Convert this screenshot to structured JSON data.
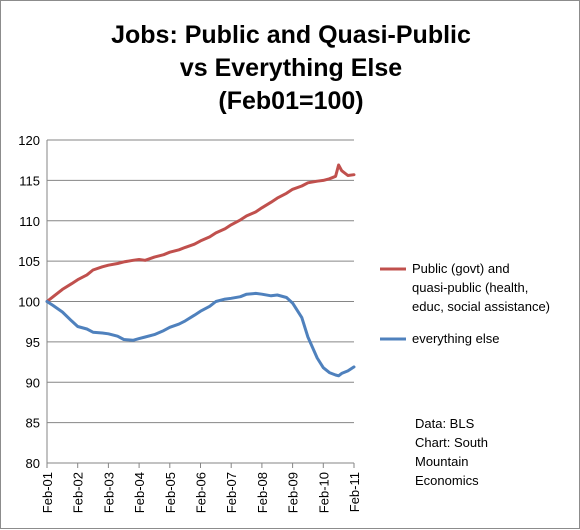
{
  "chart_data": {
    "type": "line",
    "title_lines": [
      "Jobs: Public and Quasi-Public",
      "vs Everything Else",
      "(Feb01=100)"
    ],
    "xlabel": "",
    "ylabel": "",
    "ylim": [
      80,
      120
    ],
    "y_ticks": [
      "80",
      "85",
      "90",
      "95",
      "100",
      "105",
      "110",
      "115",
      "120"
    ],
    "x_ticks": [
      "Feb-01",
      "Feb-02",
      "Feb-03",
      "Feb-04",
      "Feb-05",
      "Feb-06",
      "Feb-07",
      "Feb-08",
      "Feb-09",
      "Feb-10",
      "Feb-11"
    ],
    "grid": "horizontal",
    "legend_position": "right",
    "series": [
      {
        "name_lines": [
          "Public (govt) and",
          "quasi-public (health,",
          "educ, social assistance)"
        ],
        "color": "#C0504D",
        "x": [
          0,
          0.2,
          0.5,
          0.8,
          1.0,
          1.3,
          1.5,
          1.8,
          2.0,
          2.3,
          2.5,
          2.8,
          3.0,
          3.2,
          3.5,
          3.8,
          4.0,
          4.3,
          4.5,
          4.8,
          5.0,
          5.3,
          5.5,
          5.8,
          6.0,
          6.3,
          6.5,
          6.8,
          7.0,
          7.3,
          7.5,
          7.8,
          8.0,
          8.3,
          8.5,
          8.8,
          9.0,
          9.2,
          9.4,
          9.5,
          9.6,
          9.8,
          10.0
        ],
        "values": [
          100.0,
          100.6,
          101.5,
          102.2,
          102.7,
          103.3,
          103.9,
          104.3,
          104.5,
          104.7,
          104.9,
          105.1,
          105.2,
          105.1,
          105.5,
          105.8,
          106.1,
          106.4,
          106.7,
          107.1,
          107.5,
          108.0,
          108.5,
          109.0,
          109.5,
          110.1,
          110.6,
          111.1,
          111.6,
          112.3,
          112.8,
          113.4,
          113.9,
          114.3,
          114.7,
          114.9,
          115.0,
          115.2,
          115.5,
          116.9,
          116.2,
          115.6,
          115.7
        ]
      },
      {
        "name_lines": [
          "everything else"
        ],
        "color": "#4F81BD",
        "x": [
          0,
          0.2,
          0.5,
          0.8,
          1.0,
          1.3,
          1.5,
          1.8,
          2.0,
          2.3,
          2.5,
          2.8,
          3.0,
          3.2,
          3.5,
          3.8,
          4.0,
          4.3,
          4.5,
          4.8,
          5.0,
          5.3,
          5.5,
          5.8,
          6.0,
          6.3,
          6.5,
          6.8,
          7.0,
          7.3,
          7.5,
          7.8,
          8.0,
          8.3,
          8.5,
          8.8,
          9.0,
          9.2,
          9.4,
          9.5,
          9.6,
          9.8,
          10.0
        ],
        "values": [
          100.0,
          99.5,
          98.7,
          97.6,
          96.9,
          96.6,
          96.2,
          96.1,
          96.0,
          95.7,
          95.3,
          95.2,
          95.4,
          95.6,
          95.9,
          96.4,
          96.8,
          97.2,
          97.6,
          98.3,
          98.8,
          99.4,
          100.0,
          100.3,
          100.4,
          100.6,
          100.9,
          101.0,
          100.9,
          100.7,
          100.8,
          100.5,
          99.8,
          98.0,
          95.6,
          93.0,
          91.8,
          91.2,
          90.9,
          90.8,
          91.1,
          91.4,
          91.9
        ]
      }
    ],
    "annotation_lines": [
      "Data: BLS",
      "Chart: South",
      "Mountain",
      "Economics"
    ]
  }
}
